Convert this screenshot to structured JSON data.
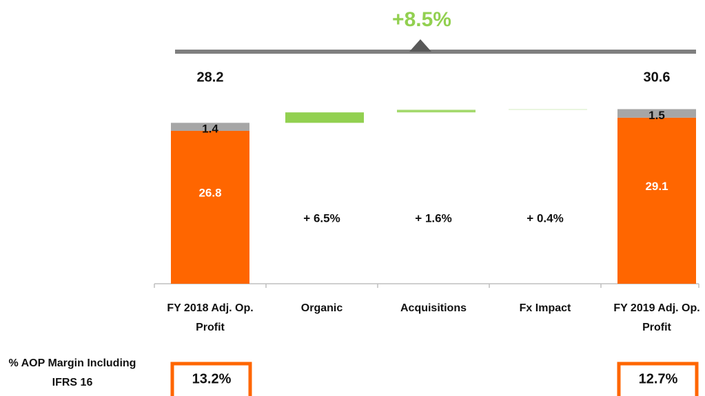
{
  "chart_data": {
    "type": "waterfall",
    "annotation": "+8.5%",
    "categories": [
      "FY 2018 Adj. Op. Profit",
      "Organic",
      "Acquisitions",
      "Fx Impact",
      "FY 2019 Adj. Op. Profit"
    ],
    "series": [
      {
        "color": "#ff6600",
        "values": [
          26.8,
          null,
          null,
          null,
          29.1
        ]
      },
      {
        "color": "#a6a6a6",
        "values": [
          1.4,
          null,
          null,
          null,
          1.5
        ]
      }
    ],
    "totals": [
      28.2,
      null,
      null,
      null,
      30.6
    ],
    "deltas": {
      "colors": [
        null,
        "#92d050",
        "#a3d96c",
        "#d4edc0",
        null
      ],
      "values": [
        null,
        1.83,
        0.45,
        0.12,
        null
      ]
    },
    "growth": {
      "values": [
        null,
        6.5,
        1.6,
        0.4,
        null
      ],
      "value_labels": [
        null,
        "+ 6.5%",
        "+ 1.6%",
        "+ 0.4%",
        null
      ]
    },
    "margin": {
      "label": "% AOP Margin Including IFRS 16",
      "values": [
        13.2,
        null,
        null,
        null,
        12.7
      ],
      "value_labels": [
        "13.2%",
        null,
        null,
        null,
        "12.7%"
      ],
      "color": "#ff6600"
    },
    "ylim": [
      0,
      35
    ]
  }
}
